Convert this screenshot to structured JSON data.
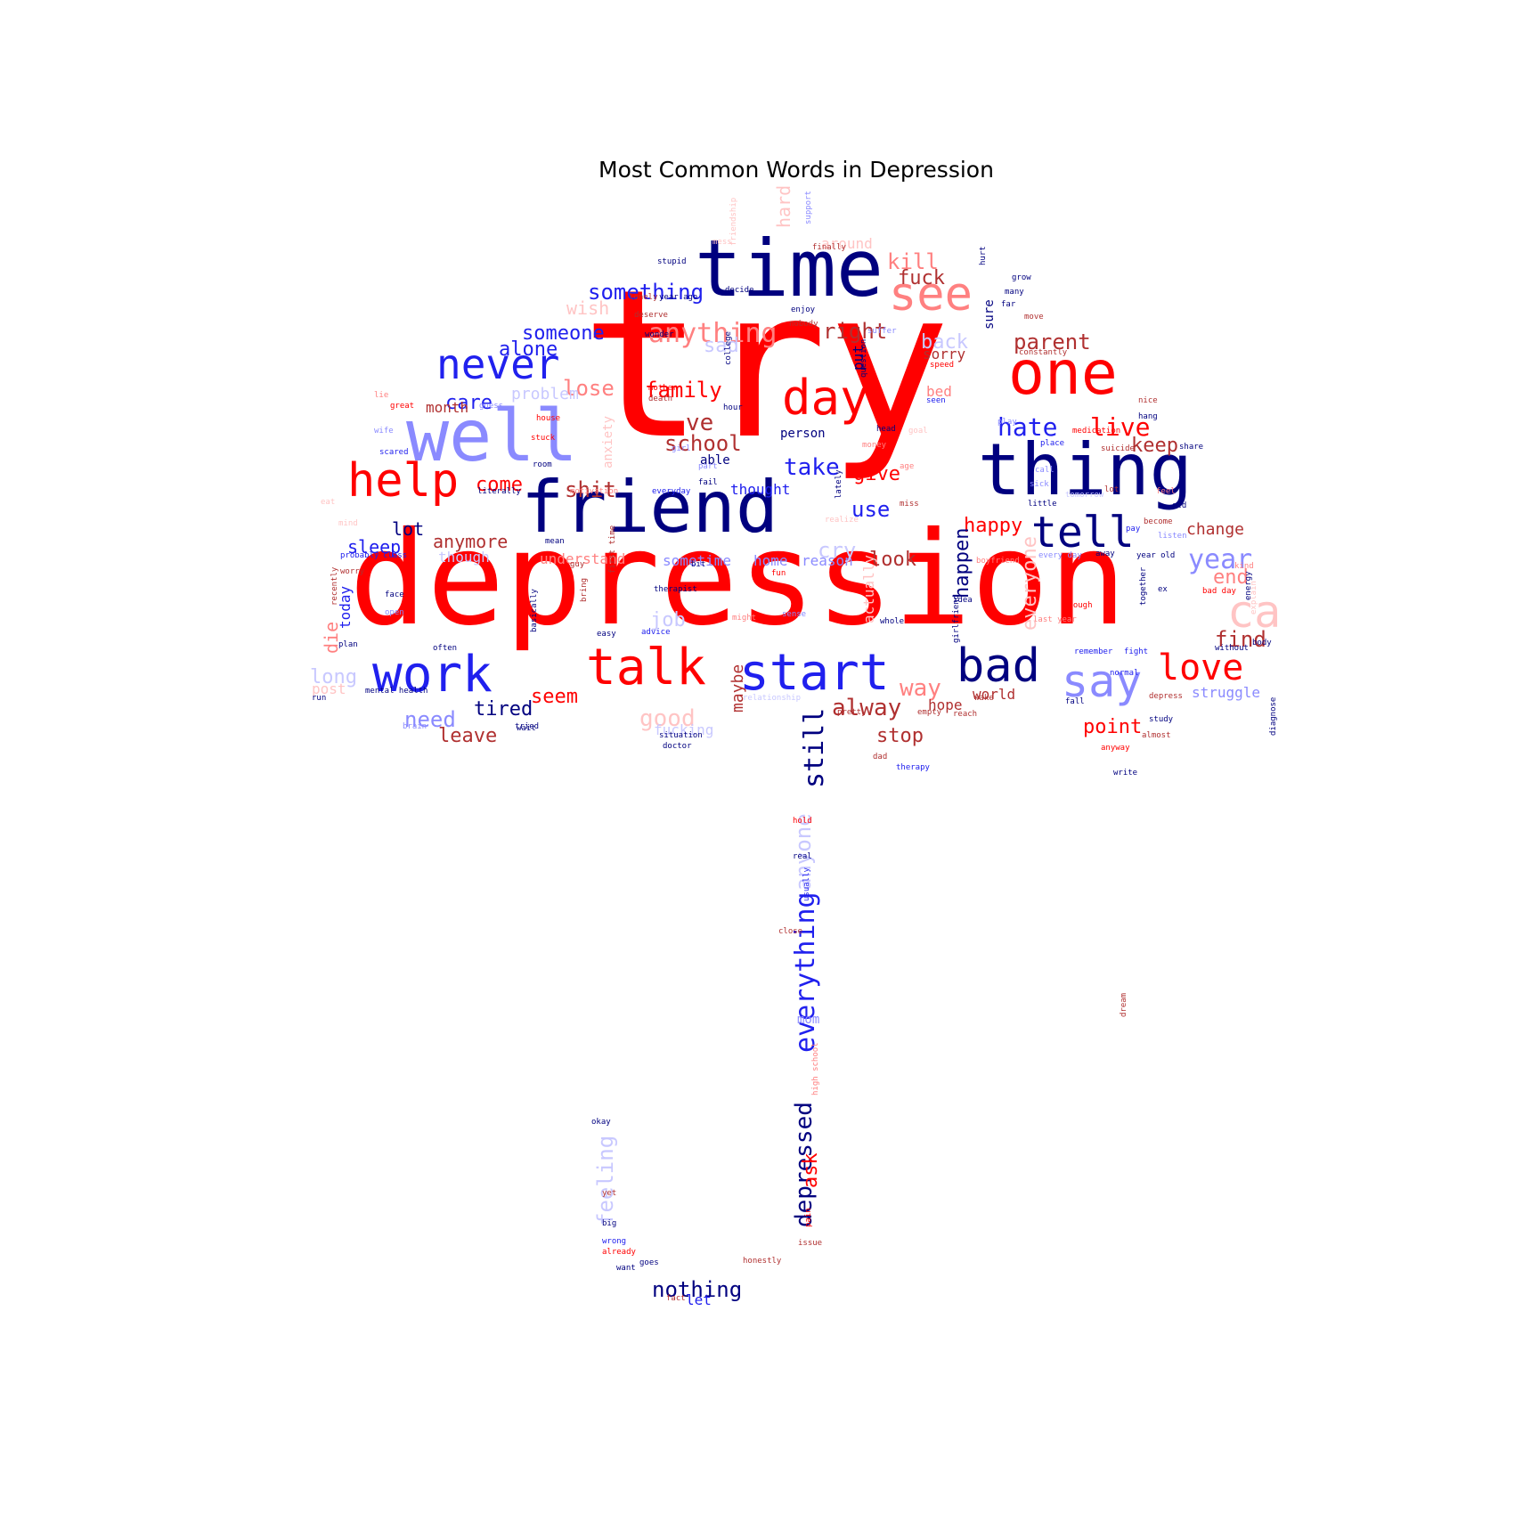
{
  "title": "Most Common Words in Depression",
  "palette": {
    "red": "#ff0000",
    "light_red": "#ff8080",
    "pale_red": "#ffc4c4",
    "dark_red": "#b03030",
    "navy": "#00007f",
    "blue": "#2020ee",
    "light_blue": "#8a8aff",
    "pale_blue": "#c8c8ff"
  },
  "words": [
    {
      "text": "try",
      "color": "red"
    },
    {
      "text": "depression",
      "color": "red"
    },
    {
      "text": "time",
      "color": "navy"
    },
    {
      "text": "friend",
      "color": "navy"
    },
    {
      "text": "thing",
      "color": "navy"
    },
    {
      "text": "one",
      "color": "red"
    },
    {
      "text": "well",
      "color": "light_blue"
    },
    {
      "text": "help",
      "color": "red"
    },
    {
      "text": "never",
      "color": "blue"
    },
    {
      "text": "see",
      "color": "light_red"
    },
    {
      "text": "day",
      "color": "red"
    },
    {
      "text": "tell",
      "color": "navy"
    },
    {
      "text": "start",
      "color": "blue"
    },
    {
      "text": "talk",
      "color": "red"
    },
    {
      "text": "work",
      "color": "blue"
    },
    {
      "text": "bad",
      "color": "navy"
    },
    {
      "text": "say",
      "color": "light_blue"
    },
    {
      "text": "love",
      "color": "red"
    },
    {
      "text": "ca",
      "color": "pale_red"
    },
    {
      "text": "still",
      "color": "navy"
    },
    {
      "text": "everything",
      "color": "blue"
    },
    {
      "text": "depressed",
      "color": "navy"
    },
    {
      "text": "anything",
      "color": "light_red"
    },
    {
      "text": "something",
      "color": "blue"
    },
    {
      "text": "someone",
      "color": "blue"
    },
    {
      "text": "alone",
      "color": "blue"
    },
    {
      "text": "care",
      "color": "blue"
    },
    {
      "text": "lose",
      "color": "light_red"
    },
    {
      "text": "family",
      "color": "red"
    },
    {
      "text": "school",
      "color": "dark_red"
    },
    {
      "text": "ve",
      "color": "dark_red"
    },
    {
      "text": "right",
      "color": "dark_red"
    },
    {
      "text": "parent",
      "color": "dark_red"
    },
    {
      "text": "kill",
      "color": "light_red"
    },
    {
      "text": "fuck",
      "color": "dark_red"
    },
    {
      "text": "hate",
      "color": "blue"
    },
    {
      "text": "live",
      "color": "red"
    },
    {
      "text": "keep",
      "color": "dark_red"
    },
    {
      "text": "take",
      "color": "blue"
    },
    {
      "text": "give",
      "color": "red"
    },
    {
      "text": "happy",
      "color": "red"
    },
    {
      "text": "change",
      "color": "dark_red"
    },
    {
      "text": "year",
      "color": "light_blue"
    },
    {
      "text": "end",
      "color": "light_red"
    },
    {
      "text": "find",
      "color": "dark_red"
    },
    {
      "text": "look",
      "color": "dark_red"
    },
    {
      "text": "happen",
      "color": "navy"
    },
    {
      "text": "everyone",
      "color": "pale_red"
    },
    {
      "text": "use",
      "color": "blue"
    },
    {
      "text": "sad",
      "color": "pale_blue"
    },
    {
      "text": "back",
      "color": "pale_blue"
    },
    {
      "text": "sorry",
      "color": "dark_red"
    },
    {
      "text": "wish",
      "color": "pale_red"
    },
    {
      "text": "problem",
      "color": "pale_blue"
    },
    {
      "text": "month",
      "color": "dark_red"
    },
    {
      "text": "come",
      "color": "red"
    },
    {
      "text": "shit",
      "color": "dark_red"
    },
    {
      "text": "lot",
      "color": "navy"
    },
    {
      "text": "sleep",
      "color": "blue"
    },
    {
      "text": "anymore",
      "color": "dark_red"
    },
    {
      "text": "though",
      "color": "pale_blue"
    },
    {
      "text": "understand",
      "color": "light_red"
    },
    {
      "text": "sometime",
      "color": "light_blue"
    },
    {
      "text": "home",
      "color": "light_blue"
    },
    {
      "text": "reason",
      "color": "light_blue"
    },
    {
      "text": "cry",
      "color": "pale_blue"
    },
    {
      "text": "job",
      "color": "pale_blue"
    },
    {
      "text": "maybe",
      "color": "dark_red"
    },
    {
      "text": "seem",
      "color": "red"
    },
    {
      "text": "good",
      "color": "pale_red"
    },
    {
      "text": "need",
      "color": "light_blue"
    },
    {
      "text": "tired",
      "color": "navy"
    },
    {
      "text": "leave",
      "color": "dark_red"
    },
    {
      "text": "fucking",
      "color": "pale_blue"
    },
    {
      "text": "alway",
      "color": "dark_red"
    },
    {
      "text": "way",
      "color": "light_red"
    },
    {
      "text": "hope",
      "color": "dark_red"
    },
    {
      "text": "world",
      "color": "dark_red"
    },
    {
      "text": "stop",
      "color": "dark_red"
    },
    {
      "text": "point",
      "color": "red"
    },
    {
      "text": "struggle",
      "color": "light_blue"
    },
    {
      "text": "die",
      "color": "light_red"
    },
    {
      "text": "today",
      "color": "blue"
    },
    {
      "text": "long",
      "color": "pale_blue"
    },
    {
      "text": "post",
      "color": "pale_red"
    },
    {
      "text": "thought",
      "color": "blue"
    },
    {
      "text": "able",
      "color": "navy"
    },
    {
      "text": "person",
      "color": "navy"
    },
    {
      "text": "hard",
      "color": "pale_red"
    },
    {
      "text": "around",
      "color": "pale_red"
    },
    {
      "text": "anxiety",
      "color": "pale_red"
    },
    {
      "text": "put",
      "color": "navy"
    },
    {
      "text": "nothing",
      "color": "navy"
    },
    {
      "text": "let",
      "color": "blue"
    },
    {
      "text": "ask",
      "color": "red"
    },
    {
      "text": "feeling",
      "color": "pale_blue"
    },
    {
      "text": "mom",
      "color": "light_blue"
    },
    {
      "text": "actually",
      "color": "pale_red"
    },
    {
      "text": "anyone",
      "color": "pale_blue"
    },
    {
      "text": "bed",
      "color": "light_red"
    },
    {
      "text": "sure",
      "color": "navy"
    },
    {
      "text": "stupid",
      "color": "navy"
    },
    {
      "text": "decide",
      "color": "navy"
    },
    {
      "text": "year ago",
      "color": "navy"
    },
    {
      "text": "lonely",
      "color": "dark_red"
    },
    {
      "text": "enjoy",
      "color": "navy"
    },
    {
      "text": "nobody",
      "color": "dark_red"
    },
    {
      "text": "suffer",
      "color": "light_blue"
    },
    {
      "text": "constantly",
      "color": "dark_red"
    },
    {
      "text": "college",
      "color": "navy"
    },
    {
      "text": "hour",
      "color": "navy"
    },
    {
      "text": "head",
      "color": "navy"
    },
    {
      "text": "money",
      "color": "light_red"
    },
    {
      "text": "place",
      "color": "blue"
    },
    {
      "text": "suicide",
      "color": "dark_red"
    },
    {
      "text": "share",
      "color": "navy"
    },
    {
      "text": "hang",
      "color": "navy"
    },
    {
      "text": "nice",
      "color": "dark_red"
    },
    {
      "text": "medication",
      "color": "red"
    },
    {
      "text": "girl",
      "color": "light_blue"
    },
    {
      "text": "part",
      "color": "light_blue"
    },
    {
      "text": "fail",
      "color": "navy"
    },
    {
      "text": "everyday",
      "color": "blue"
    },
    {
      "text": "literally",
      "color": "navy"
    },
    {
      "text": "motivation",
      "color": "light_red"
    },
    {
      "text": "probably",
      "color": "blue"
    },
    {
      "text": "class",
      "color": "blue"
    },
    {
      "text": "great",
      "color": "red"
    },
    {
      "text": "scared",
      "color": "blue"
    },
    {
      "text": "house",
      "color": "red"
    },
    {
      "text": "guess",
      "color": "light_blue"
    },
    {
      "text": "therapist",
      "color": "navy"
    },
    {
      "text": "advice",
      "color": "blue"
    },
    {
      "text": "doctor",
      "color": "navy"
    },
    {
      "text": "situation",
      "color": "navy"
    },
    {
      "text": "relationship",
      "color": "pale_blue"
    },
    {
      "text": "pretty",
      "color": "dark_red"
    },
    {
      "text": "empty",
      "color": "dark_red"
    },
    {
      "text": "reach",
      "color": "dark_red"
    },
    {
      "text": "wake",
      "color": "dark_red"
    },
    {
      "text": "fall",
      "color": "navy"
    },
    {
      "text": "depress",
      "color": "dark_red"
    },
    {
      "text": "study",
      "color": "navy"
    },
    {
      "text": "almost",
      "color": "dark_red"
    },
    {
      "text": "remember",
      "color": "blue"
    },
    {
      "text": "fight",
      "color": "blue"
    },
    {
      "text": "normal",
      "color": "blue"
    },
    {
      "text": "without",
      "color": "navy"
    },
    {
      "text": "body",
      "color": "navy"
    },
    {
      "text": "diagnose",
      "color": "navy"
    },
    {
      "text": "anyway",
      "color": "red"
    },
    {
      "text": "write",
      "color": "navy"
    },
    {
      "text": "therapy",
      "color": "blue"
    },
    {
      "text": "dad",
      "color": "dark_red"
    },
    {
      "text": "hold",
      "color": "red"
    },
    {
      "text": "real",
      "color": "navy"
    },
    {
      "text": "close",
      "color": "dark_red"
    },
    {
      "text": "usually",
      "color": "blue"
    },
    {
      "text": "high school",
      "color": "light_red"
    },
    {
      "text": "issue",
      "color": "dark_red"
    },
    {
      "text": "pain",
      "color": "red"
    },
    {
      "text": "honestly",
      "color": "dark_red"
    },
    {
      "text": "already",
      "color": "red"
    },
    {
      "text": "wrong",
      "color": "blue"
    },
    {
      "text": "big",
      "color": "navy"
    },
    {
      "text": "okay",
      "color": "navy"
    },
    {
      "text": "yet",
      "color": "dark_red"
    },
    {
      "text": "want",
      "color": "navy"
    },
    {
      "text": "goes",
      "color": "navy"
    },
    {
      "text": "fact",
      "color": "dark_red"
    },
    {
      "text": "dream",
      "color": "dark_red"
    },
    {
      "text": "mental health",
      "color": "navy"
    },
    {
      "text": "run",
      "color": "navy"
    },
    {
      "text": "brain",
      "color": "light_blue"
    },
    {
      "text": "wait",
      "color": "navy"
    },
    {
      "text": "tried",
      "color": "navy"
    },
    {
      "text": "open",
      "color": "light_blue"
    },
    {
      "text": "plan",
      "color": "navy"
    },
    {
      "text": "worry",
      "color": "dark_red"
    },
    {
      "text": "recently",
      "color": "dark_red"
    },
    {
      "text": "often",
      "color": "navy"
    },
    {
      "text": "face",
      "color": "navy"
    },
    {
      "text": "basically",
      "color": "navy"
    },
    {
      "text": "easy",
      "color": "navy"
    },
    {
      "text": "bring",
      "color": "dark_red"
    },
    {
      "text": "whole",
      "color": "navy"
    },
    {
      "text": "enough",
      "color": "red"
    },
    {
      "text": "last year",
      "color": "light_red"
    },
    {
      "text": "boyfriend",
      "color": "light_red"
    },
    {
      "text": "girlfriend",
      "color": "navy"
    },
    {
      "text": "idea",
      "color": "navy"
    },
    {
      "text": "together",
      "color": "navy"
    },
    {
      "text": "explain",
      "color": "pale_red"
    },
    {
      "text": "little",
      "color": "navy"
    },
    {
      "text": "pay",
      "color": "blue"
    },
    {
      "text": "listen",
      "color": "light_blue"
    },
    {
      "text": "become",
      "color": "dark_red"
    },
    {
      "text": "lately",
      "color": "navy"
    },
    {
      "text": "realize",
      "color": "pale_red"
    },
    {
      "text": "miss",
      "color": "dark_red"
    },
    {
      "text": "support",
      "color": "light_blue"
    },
    {
      "text": "finally",
      "color": "dark_red"
    },
    {
      "text": "wonder",
      "color": "navy"
    },
    {
      "text": "deserve",
      "color": "dark_red"
    },
    {
      "text": "question",
      "color": "navy"
    },
    {
      "text": "speed",
      "color": "red"
    },
    {
      "text": "many",
      "color": "navy"
    },
    {
      "text": "far",
      "color": "navy"
    },
    {
      "text": "move",
      "color": "dark_red"
    },
    {
      "text": "hurt",
      "color": "navy"
    },
    {
      "text": "grow",
      "color": "navy"
    },
    {
      "text": "stuck",
      "color": "red"
    },
    {
      "text": "death",
      "color": "dark_red"
    },
    {
      "text": "mother",
      "color": "red"
    },
    {
      "text": "room",
      "color": "navy"
    },
    {
      "text": "guy",
      "color": "dark_red"
    },
    {
      "text": "mean",
      "color": "navy"
    },
    {
      "text": "seen",
      "color": "blue"
    },
    {
      "text": "first time",
      "color": "dark_red"
    },
    {
      "text": "might",
      "color": "light_red"
    },
    {
      "text": "sense",
      "color": "light_blue"
    },
    {
      "text": "fun",
      "color": "red"
    },
    {
      "text": "bit",
      "color": "navy"
    },
    {
      "text": "year old",
      "color": "navy"
    },
    {
      "text": "away",
      "color": "navy"
    },
    {
      "text": "every day",
      "color": "light_blue"
    },
    {
      "text": "ex",
      "color": "navy"
    },
    {
      "text": "bad day",
      "color": "red"
    },
    {
      "text": "kind",
      "color": "light_red"
    },
    {
      "text": "lie",
      "color": "light_red"
    },
    {
      "text": "eat",
      "color": "pale_red"
    },
    {
      "text": "wife",
      "color": "light_blue"
    },
    {
      "text": "mind",
      "color": "pale_red"
    },
    {
      "text": "feel",
      "color": "light_red"
    },
    {
      "text": "old",
      "color": "navy"
    },
    {
      "text": "energy",
      "color": "navy"
    },
    {
      "text": "call",
      "color": "light_blue"
    },
    {
      "text": "lot",
      "color": "dark_red"
    },
    {
      "text": "play",
      "color": "light_blue"
    },
    {
      "text": "goal",
      "color": "pale_red"
    },
    {
      "text": "age",
      "color": "light_red"
    },
    {
      "text": "sick",
      "color": "light_blue"
    },
    {
      "text": "tomorrow",
      "color": "pale_blue"
    },
    {
      "text": "mess",
      "color": "pale_red"
    },
    {
      "text": "friendship",
      "color": "pale_red"
    }
  ]
}
